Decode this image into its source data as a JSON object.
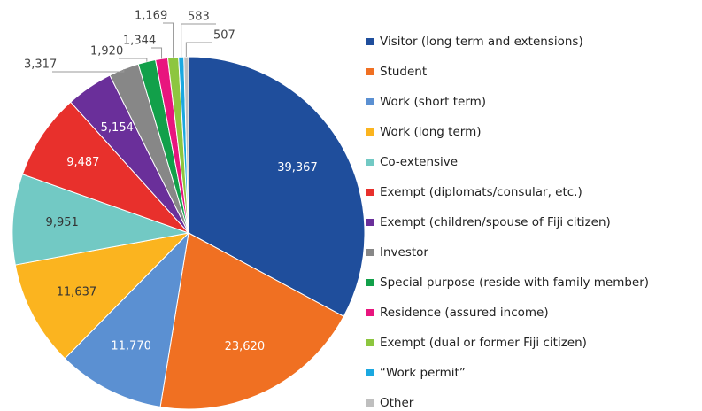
{
  "chart_data": {
    "type": "pie",
    "categories": [
      "Visitor (long term and extensions)",
      "Student",
      "Work (short term)",
      "Work (long term)",
      "Co-extensive",
      "Exempt (diplomats/consular, etc.)",
      "Exempt (children/spouse of Fiji citizen)",
      "Investor",
      "Special purpose (reside with family member)",
      "Residence (assured income)",
      "Exempt (dual or former Fiji citizen)",
      "“Work permit”",
      "Other"
    ],
    "values": [
      39367,
      23620,
      11770,
      11637,
      9951,
      9487,
      5154,
      3317,
      1920,
      1344,
      1169,
      583,
      507
    ],
    "value_labels": [
      "39,367",
      "23,620",
      "11,770",
      "11,637",
      "9,951",
      "9,487",
      "5,154",
      "3,317",
      "1,920",
      "1,344",
      "1,169",
      "583",
      "507"
    ],
    "colors": [
      "#1f4e9c",
      "#f07022",
      "#5b90d2",
      "#fbb41f",
      "#72c9c4",
      "#e8302c",
      "#6a2f9a",
      "#878787",
      "#12a04a",
      "#e8157e",
      "#8dc63f",
      "#1ba8e0",
      "#bfbfbf"
    ],
    "legend": "right"
  }
}
